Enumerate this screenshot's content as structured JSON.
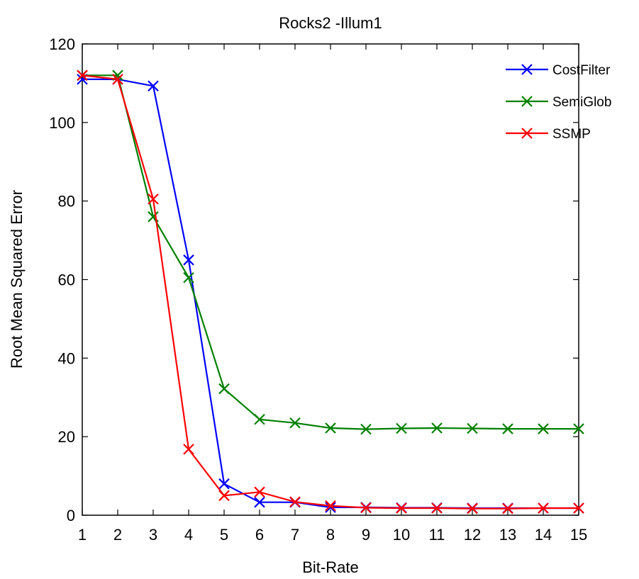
{
  "chart_data": {
    "type": "line",
    "title": "Rocks2 -Illum1",
    "xlabel": "Bit-Rate",
    "ylabel": "Root Mean Squared Error",
    "x": [
      1,
      2,
      3,
      4,
      5,
      6,
      7,
      8,
      9,
      10,
      11,
      12,
      13,
      14,
      15
    ],
    "xlim": [
      1,
      15
    ],
    "ylim": [
      0,
      120
    ],
    "xticks": [
      "1",
      "2",
      "3",
      "4",
      "5",
      "6",
      "7",
      "8",
      "9",
      "10",
      "11",
      "12",
      "13",
      "14",
      "15"
    ],
    "yticks": [
      "0",
      "20",
      "40",
      "60",
      "80",
      "100",
      "120"
    ],
    "grid": false,
    "legend_position": "top-right",
    "marker": "x",
    "series": [
      {
        "name": "CostFilter",
        "color": "#0000ff",
        "values": [
          111,
          111,
          109.3,
          65,
          8,
          3.3,
          3.3,
          2,
          2,
          1.9,
          1.9,
          1.8,
          1.8,
          1.8,
          1.8
        ]
      },
      {
        "name": "SemiGlob",
        "color": "#008000",
        "values": [
          112,
          112,
          76,
          60.5,
          32.2,
          24.4,
          23.5,
          22.2,
          21.9,
          22.1,
          22.2,
          22.1,
          22,
          22,
          22
        ]
      },
      {
        "name": "SSMP",
        "color": "#ff0000",
        "values": [
          112,
          111,
          80.5,
          16.8,
          5,
          5.9,
          3.4,
          2.4,
          1.9,
          1.8,
          1.8,
          1.7,
          1.7,
          1.8,
          1.8
        ]
      }
    ]
  }
}
